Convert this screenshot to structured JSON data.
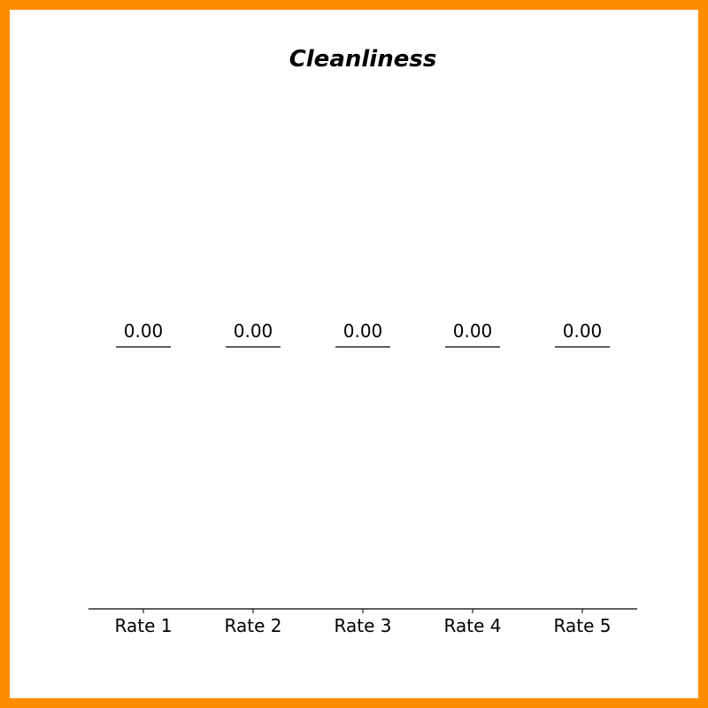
{
  "chart_data": {
    "type": "bar",
    "title": "Cleanliness",
    "xlabel": "",
    "ylabel": "",
    "categories": [
      "Rate 1",
      "Rate 2",
      "Rate 3",
      "Rate 4",
      "Rate 5"
    ],
    "values": [
      0.0,
      0.0,
      0.0,
      0.0,
      0.0
    ],
    "data_labels": [
      "0.00",
      "0.00",
      "0.00",
      "0.00",
      "0.00"
    ],
    "grid": false,
    "legend": "none",
    "colors": {
      "frame": "#ff8c00",
      "background": "#ffffff",
      "text": "#000000"
    }
  }
}
